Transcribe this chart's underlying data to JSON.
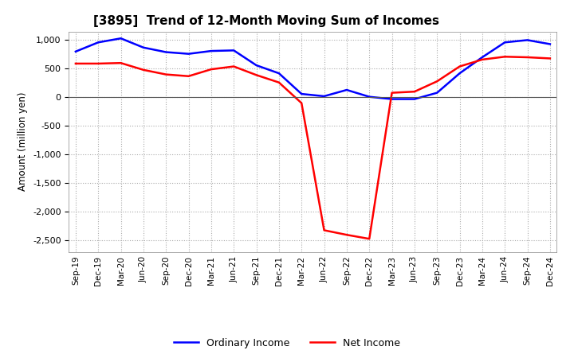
{
  "title": "[3895]  Trend of 12-Month Moving Sum of Incomes",
  "ylabel": "Amount (million yen)",
  "ylim": [
    -2700,
    1150
  ],
  "yticks": [
    -2500,
    -2000,
    -1500,
    -1000,
    -500,
    0,
    500,
    1000
  ],
  "background_color": "#ffffff",
  "grid_color": "#aaaaaa",
  "ordinary_income_color": "#0000ff",
  "net_income_color": "#ff0000",
  "line_width": 1.8,
  "x_labels": [
    "Sep-19",
    "Dec-19",
    "Mar-20",
    "Jun-20",
    "Sep-20",
    "Dec-20",
    "Mar-21",
    "Jun-21",
    "Sep-21",
    "Dec-21",
    "Mar-22",
    "Jun-22",
    "Sep-22",
    "Dec-22",
    "Mar-23",
    "Jun-23",
    "Sep-23",
    "Dec-23",
    "Mar-24",
    "Jun-24",
    "Sep-24",
    "Dec-24"
  ],
  "ordinary_income": [
    800,
    960,
    1030,
    870,
    790,
    760,
    810,
    820,
    560,
    420,
    60,
    20,
    130,
    10,
    -30,
    -30,
    80,
    420,
    700,
    960,
    1000,
    930
  ],
  "net_income": [
    590,
    590,
    600,
    480,
    400,
    370,
    490,
    540,
    390,
    260,
    -100,
    -2320,
    -2400,
    -2470,
    80,
    100,
    280,
    540,
    660,
    710,
    700,
    680
  ],
  "legend_labels": [
    "Ordinary Income",
    "Net Income"
  ]
}
